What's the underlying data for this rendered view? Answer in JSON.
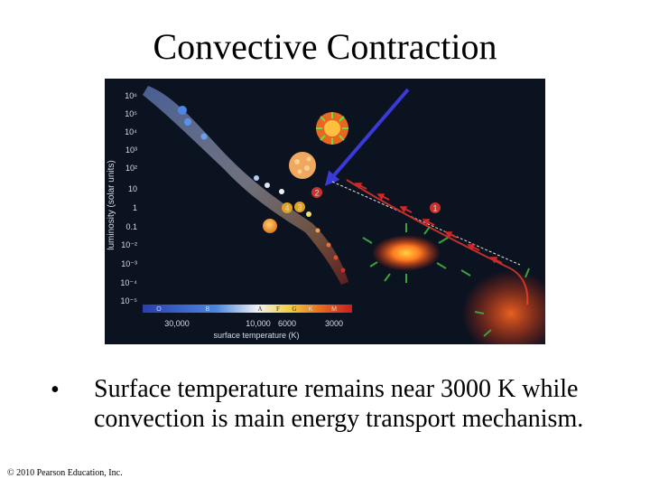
{
  "slide": {
    "title": "Convective Contraction",
    "bullet_symbol": "•",
    "bullet_text": "Surface temperature remains near 3000 K while convection is main energy transport mechanism.",
    "copyright": "© 2010 Pearson Education, Inc."
  },
  "diagram": {
    "y_axis_label": "luminosity (solar units)",
    "x_axis_label": "surface temperature (K)",
    "y_ticks": [
      "10⁶",
      "10⁵",
      "10⁴",
      "10³",
      "10²",
      "10",
      "1",
      "0.1",
      "10⁻²",
      "10⁻³",
      "10⁻⁴",
      "10⁻⁵"
    ],
    "spectral_classes": [
      "O",
      "B",
      "A",
      "F",
      "G",
      "K",
      "M"
    ],
    "x_ticks": [
      "30,000",
      "10,000",
      "6000",
      "3000"
    ],
    "stage_markers": [
      "1",
      "2",
      "3",
      "4"
    ],
    "colors": {
      "background": "#0b1220",
      "track": "#c0302a",
      "arrow": "#3a3ad8",
      "marker": "#c8322a"
    }
  }
}
